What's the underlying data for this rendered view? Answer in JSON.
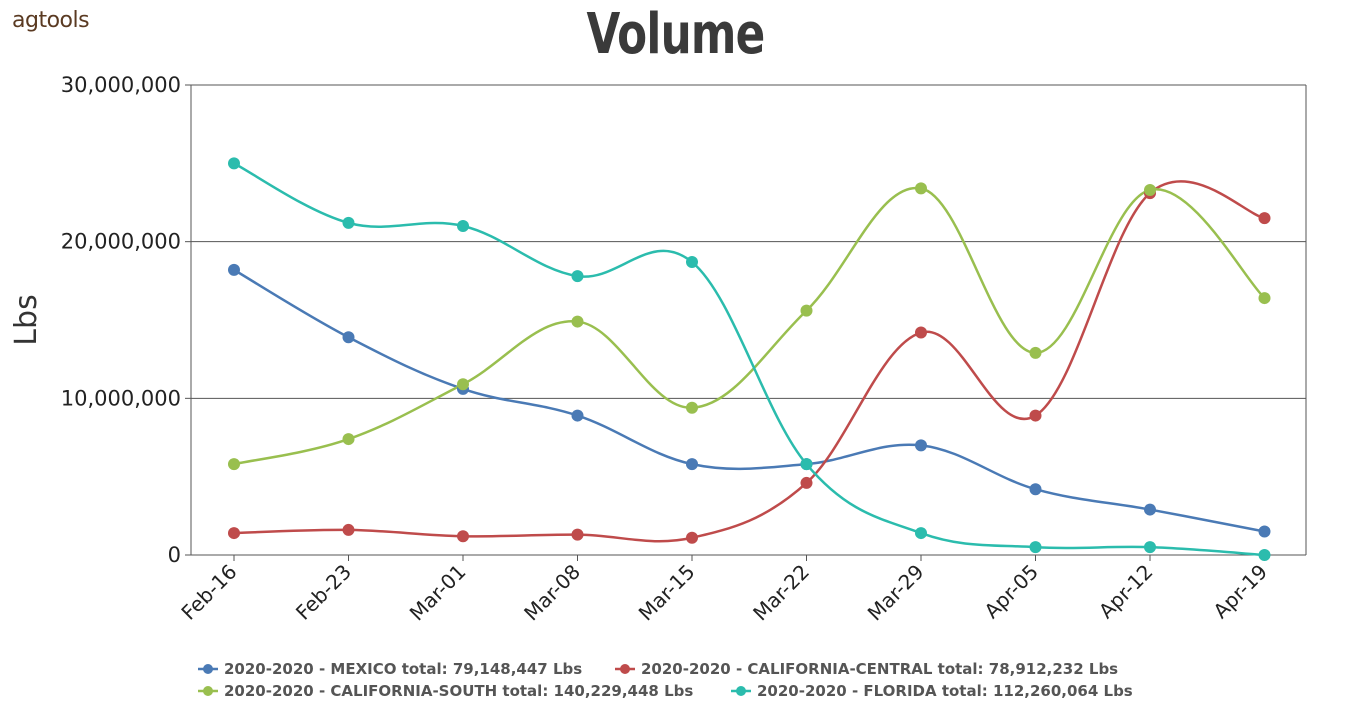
{
  "logo": {
    "text": "agtools"
  },
  "chart_data": {
    "type": "line",
    "title": "Volume",
    "ylabel": "Lbs",
    "xlabel": "",
    "ylim": [
      0,
      30000000
    ],
    "y_ticks": [
      0,
      10000000,
      20000000,
      30000000
    ],
    "y_tick_labels": [
      "0",
      "10,000,000",
      "20,000,000",
      "30,000,000"
    ],
    "grid": true,
    "legend_position": "bottom",
    "x_ticks": [
      "Feb-16",
      "Feb-23",
      "Mar-01",
      "Mar-08",
      "Mar-15",
      "Mar-22",
      "Mar-29",
      "Apr-05",
      "Apr-12",
      "Apr-19"
    ],
    "series": [
      {
        "name": "2020-2020 - MEXICO total: 79,148,447 Lbs",
        "color": "#4a7ab5",
        "values": [
          18200000,
          13900000,
          10600000,
          8900000,
          5800000,
          5800000,
          7000000,
          4200000,
          2900000,
          1500000
        ]
      },
      {
        "name": "2020-2020 - CALIFORNIA-CENTRAL total: 78,912,232 Lbs",
        "color": "#bf4b4b",
        "values": [
          1400000,
          1600000,
          1200000,
          1300000,
          1100000,
          4600000,
          14200000,
          8900000,
          23100000,
          21500000
        ]
      },
      {
        "name": "2020-2020 - CALIFORNIA-SOUTH total: 140,229,448 Lbs",
        "color": "#99bf4f",
        "values": [
          5800000,
          7400000,
          10900000,
          14900000,
          9400000,
          15600000,
          23400000,
          12900000,
          23300000,
          16400000
        ]
      },
      {
        "name": "2020-2020 - FLORIDA total: 112,260,064 Lbs",
        "color": "#2bbcad",
        "values": [
          25000000,
          21200000,
          21000000,
          17800000,
          18700000,
          5800000,
          1400000,
          500000,
          500000,
          0
        ]
      }
    ]
  }
}
